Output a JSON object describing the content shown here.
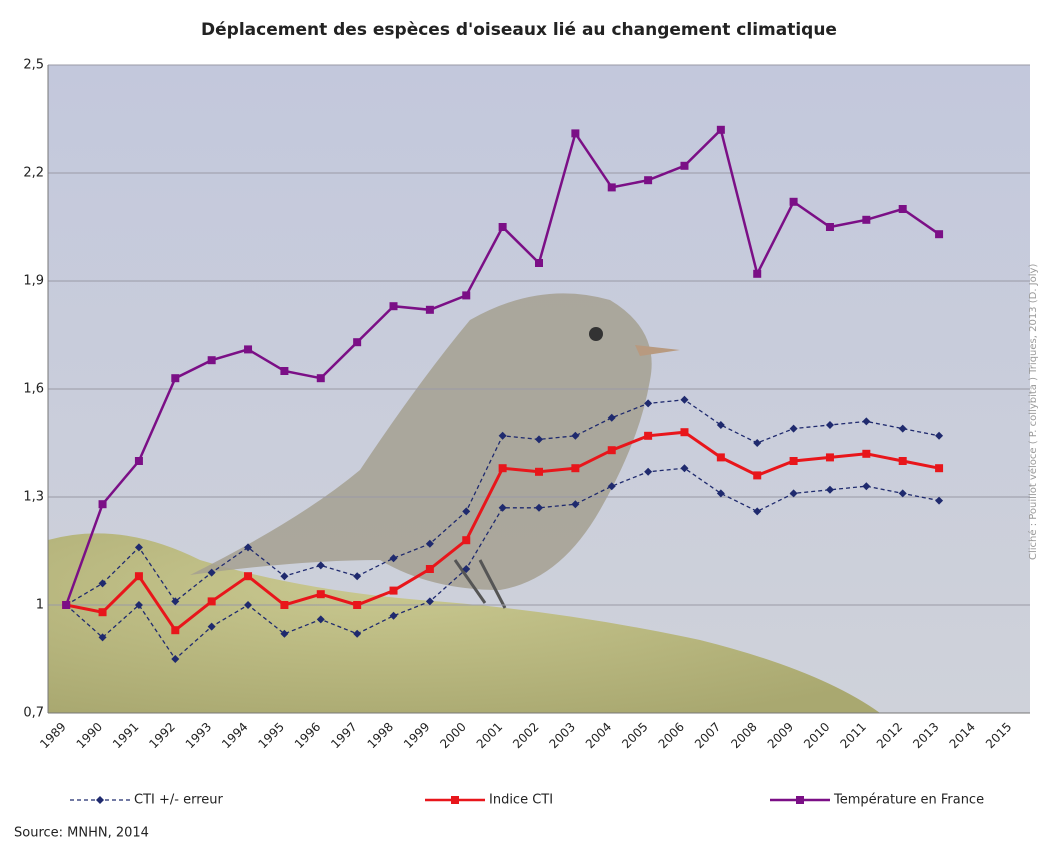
{
  "chart_data": {
    "type": "line",
    "title": "Déplacement des espèces d'oiseaux lié au changement climatique",
    "source": "Source: MNHN, 2014",
    "photo_credit": "Cliché : Pouillot véloce ( P. collybita ) Triques, 2013 (D. Joly)",
    "categories": [
      "1989",
      "1990",
      "1991",
      "1992",
      "1993",
      "1994",
      "1995",
      "1996",
      "1997",
      "1998",
      "1999",
      "2000",
      "2001",
      "2002",
      "2003",
      "2004",
      "2005",
      "2006",
      "2007",
      "2008",
      "2009",
      "2010",
      "2011",
      "2012",
      "2013",
      "2014",
      "2015"
    ],
    "ylim": [
      0.7,
      2.5
    ],
    "yticks": [
      {
        "value": 0.7,
        "label": "0,7"
      },
      1,
      {
        "value": 1.3,
        "label": "1,3"
      },
      {
        "value": 1.6,
        "label": "1,6"
      },
      {
        "value": 1.9,
        "label": "1,9"
      },
      {
        "value": 2.2,
        "label": "2,2"
      },
      {
        "value": 2.5,
        "label": "2,5"
      }
    ],
    "grid": true,
    "series": [
      {
        "name": "CTI +/- erreur",
        "color": "#1f2a6e",
        "marker": "diamond",
        "dashed": true,
        "upper": [
          1.0,
          1.06,
          1.16,
          1.01,
          1.09,
          1.16,
          1.08,
          1.11,
          1.08,
          1.13,
          1.17,
          1.26,
          1.47,
          1.46,
          1.47,
          1.52,
          1.56,
          1.57,
          1.5,
          1.45,
          1.49,
          1.5,
          1.51,
          1.49,
          1.47,
          null,
          null
        ],
        "lower": [
          1.0,
          0.91,
          1.0,
          0.85,
          0.94,
          1.0,
          0.92,
          0.96,
          0.92,
          0.97,
          1.01,
          1.1,
          1.27,
          1.27,
          1.28,
          1.33,
          1.37,
          1.38,
          1.31,
          1.26,
          1.31,
          1.32,
          1.33,
          1.31,
          1.29,
          null,
          null
        ]
      },
      {
        "name": "Indice CTI",
        "color": "#e8161b",
        "marker": "square",
        "dashed": false,
        "values": [
          1.0,
          0.98,
          1.08,
          0.93,
          1.01,
          1.08,
          1.0,
          1.03,
          1.0,
          1.04,
          1.1,
          1.18,
          1.38,
          1.37,
          1.38,
          1.43,
          1.47,
          1.48,
          1.41,
          1.36,
          1.4,
          1.41,
          1.42,
          1.4,
          1.38,
          null,
          null
        ]
      },
      {
        "name": "Température en France",
        "color": "#7b0f86",
        "marker": "square",
        "dashed": false,
        "values": [
          1.0,
          1.28,
          1.4,
          1.63,
          1.68,
          1.71,
          1.65,
          1.63,
          1.73,
          1.83,
          1.82,
          1.86,
          2.05,
          1.95,
          2.31,
          2.16,
          2.18,
          2.22,
          2.32,
          1.92,
          2.12,
          2.05,
          2.07,
          2.1,
          2.03,
          null,
          null
        ]
      }
    ]
  }
}
